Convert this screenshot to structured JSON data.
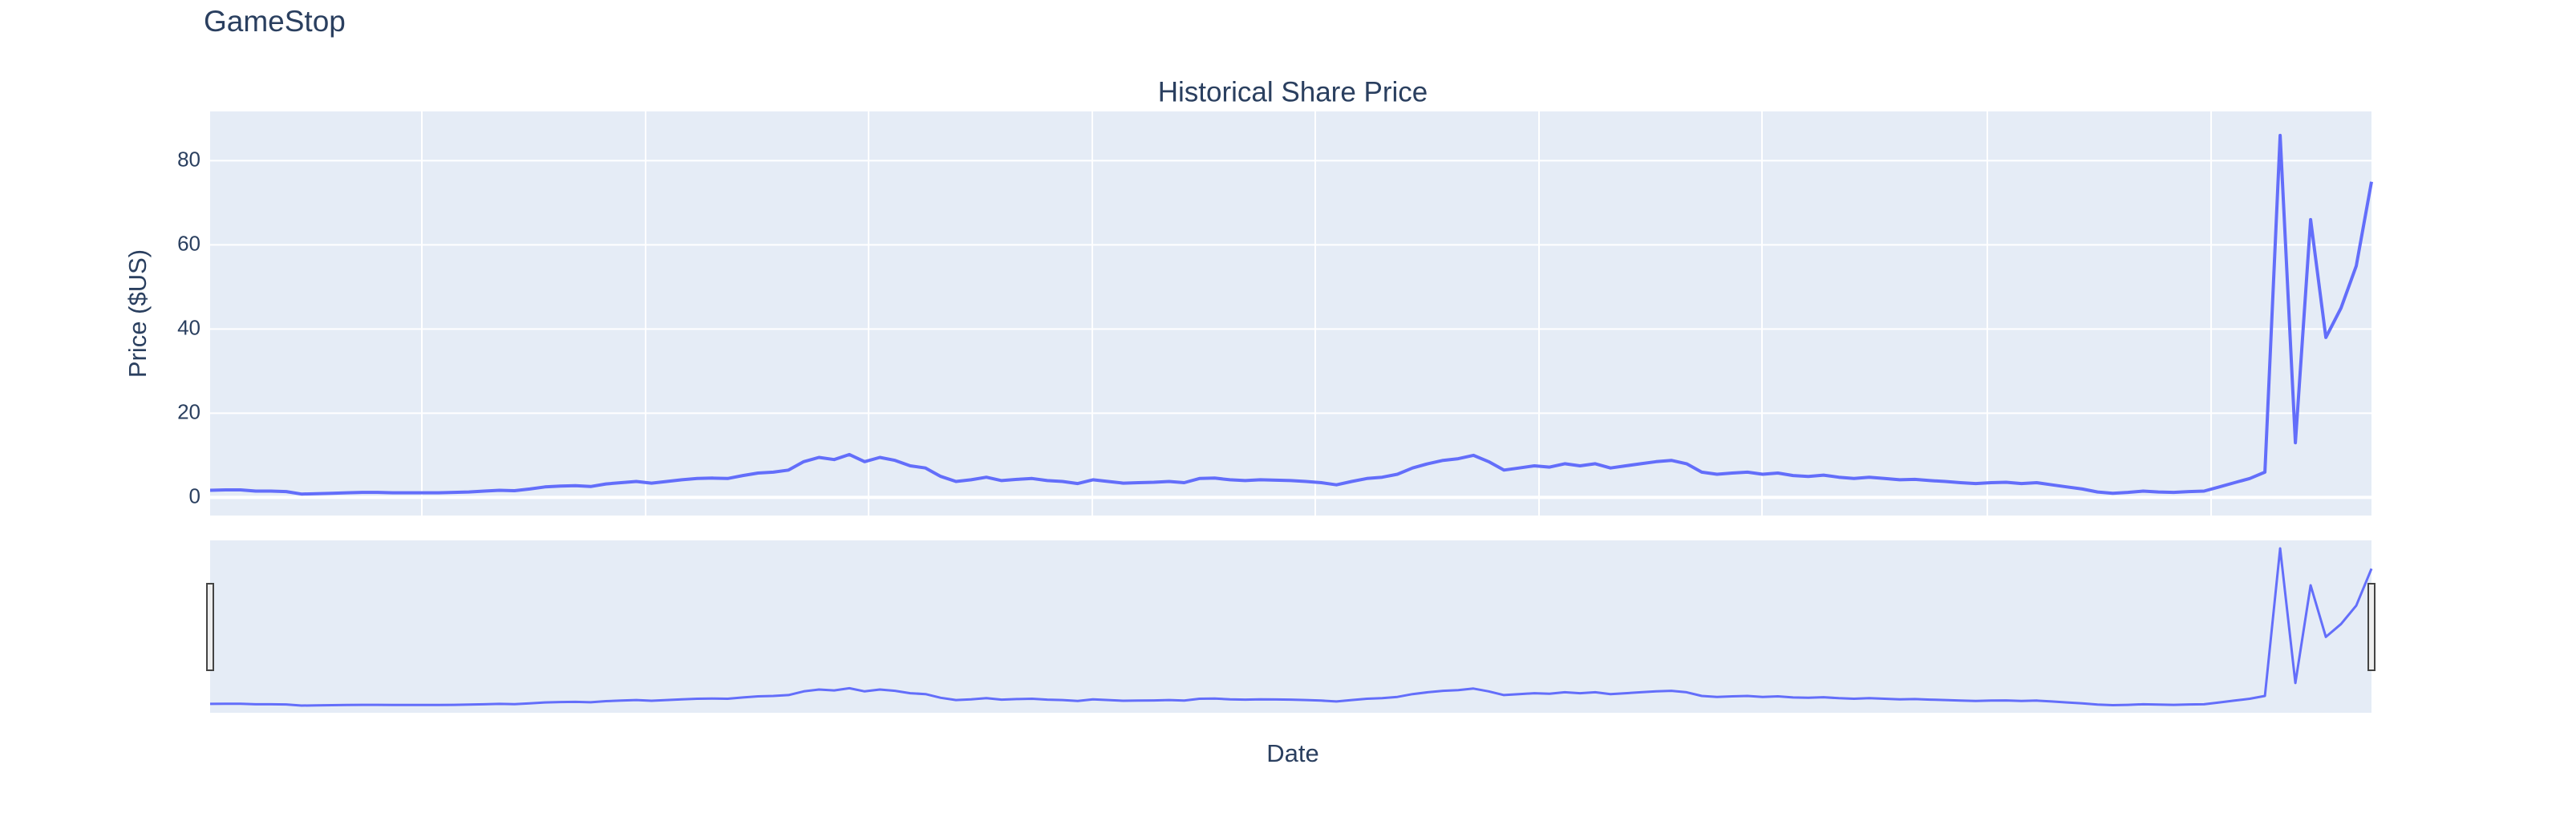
{
  "page_title": "GameStop",
  "chart_data": {
    "type": "line",
    "title": "Historical Share Price",
    "y_label": "Price ($US)",
    "x_label": "Date",
    "color": "#636efa",
    "grid": true,
    "range_slider": true,
    "ylim": [
      -4.3,
      91.7
    ],
    "yticks": [
      0,
      20,
      40,
      60,
      80
    ],
    "values": [
      1.7,
      1.8,
      1.8,
      1.5,
      1.5,
      1.4,
      0.8,
      0.9,
      1.0,
      1.1,
      1.2,
      1.2,
      1.1,
      1.1,
      1.1,
      1.1,
      1.2,
      1.3,
      1.5,
      1.7,
      1.6,
      2.0,
      2.5,
      2.7,
      2.8,
      2.6,
      3.2,
      3.5,
      3.8,
      3.4,
      3.8,
      4.2,
      4.5,
      4.6,
      4.5,
      5.2,
      5.8,
      6.0,
      6.5,
      8.5,
      9.5,
      9.0,
      10.2,
      8.5,
      9.5,
      8.8,
      7.5,
      7.0,
      5.0,
      3.8,
      4.2,
      4.8,
      4.0,
      4.3,
      4.5,
      4.0,
      3.8,
      3.3,
      4.2,
      3.8,
      3.4,
      3.5,
      3.6,
      3.8,
      3.5,
      4.5,
      4.6,
      4.2,
      4.0,
      4.2,
      4.1,
      4.0,
      3.8,
      3.5,
      3.0,
      3.8,
      4.5,
      4.8,
      5.5,
      7.0,
      8.0,
      8.8,
      9.2,
      10.0,
      8.5,
      6.5,
      7.0,
      7.5,
      7.2,
      8.0,
      7.5,
      8.0,
      7.0,
      7.5,
      8.0,
      8.5,
      8.8,
      8.0,
      6.0,
      5.5,
      5.8,
      6.0,
      5.5,
      5.8,
      5.2,
      5.0,
      5.3,
      4.8,
      4.5,
      4.8,
      4.5,
      4.2,
      4.3,
      4.0,
      3.8,
      3.5,
      3.3,
      3.5,
      3.6,
      3.3,
      3.5,
      3.0,
      2.5,
      2.0,
      1.3,
      1.0,
      1.2,
      1.5,
      1.3,
      1.2,
      1.4,
      1.5,
      2.5,
      3.5,
      4.5,
      6.0,
      86.0,
      13.0,
      66.0,
      38.0,
      45.0,
      55.0,
      75.0
    ]
  }
}
